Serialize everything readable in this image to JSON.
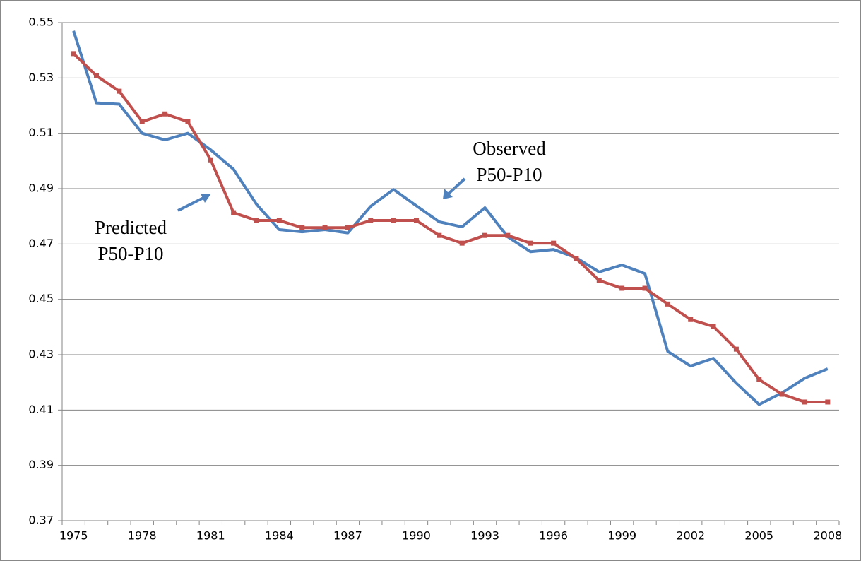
{
  "chart_data": {
    "type": "line",
    "x": [
      "1975",
      null,
      null,
      "1978",
      null,
      null,
      "1981",
      null,
      null,
      "1984",
      null,
      null,
      "1987",
      null,
      null,
      "1990",
      null,
      null,
      "1993",
      null,
      null,
      "1996",
      null,
      null,
      "1999",
      null,
      null,
      "2002",
      null,
      null,
      "2005",
      null,
      null,
      "2008"
    ],
    "series": [
      {
        "color": "#4f81bd",
        "marker": false,
        "values": [
          0.547,
          0.521,
          0.5205,
          0.51,
          0.5076,
          0.51,
          0.504,
          0.497,
          0.4844,
          0.4752,
          0.4744,
          0.4752,
          0.474,
          0.4836,
          0.4897,
          0.4838,
          0.478,
          0.4762,
          0.4831,
          0.4726,
          0.4672,
          0.468,
          0.465,
          0.4599,
          0.4624,
          0.4593,
          0.4312,
          0.4259,
          0.4287,
          0.4197,
          0.412,
          0.4162,
          0.4215,
          0.4249
        ]
      },
      {
        "color": "#c0504d",
        "marker": true,
        "values": [
          0.5388,
          0.5308,
          0.5252,
          0.5142,
          0.517,
          0.5142,
          0.5004,
          0.4813,
          0.4785,
          0.4785,
          0.4759,
          0.4759,
          0.4759,
          0.4785,
          0.4785,
          0.4785,
          0.4731,
          0.4703,
          0.4731,
          0.4731,
          0.4703,
          0.4703,
          0.4647,
          0.4568,
          0.454,
          0.454,
          0.4483,
          0.4427,
          0.4402,
          0.432,
          0.421,
          0.4157,
          0.4129,
          0.4129
        ]
      }
    ],
    "ylim": [
      0.37,
      0.55
    ],
    "yticks": [
      0.37,
      0.39,
      0.41,
      0.43,
      0.45,
      0.47,
      0.49,
      0.51,
      0.53,
      0.55
    ],
    "grid": true,
    "annotations": [
      {
        "lines": [
          "Observed",
          "P50-P10"
        ]
      },
      {
        "lines": [
          "Predicted",
          "P50-P10"
        ]
      }
    ]
  }
}
